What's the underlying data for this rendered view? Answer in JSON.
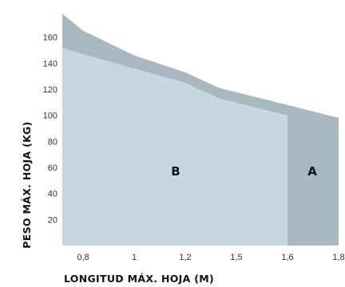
{
  "chart_data": {
    "type": "area",
    "title": "",
    "xlabel": "LONGITUD MÁX. HOJA (M)",
    "ylabel": "PESO MÁX. HOJA (KG)",
    "xlim": [
      0.7,
      1.8
    ],
    "ylim": [
      0,
      180
    ],
    "x_ticks": [
      "0,8",
      "1",
      "1,2",
      "1,5",
      "1,6",
      "1,8"
    ],
    "y_ticks": [
      "20",
      "40",
      "60",
      "80",
      "100",
      "120",
      "140",
      "160"
    ],
    "grid": false,
    "series": [
      {
        "name": "A",
        "color": "#a7b8c1",
        "x": [
          0.7,
          0.8,
          1.0,
          1.2,
          1.4,
          1.6,
          1.8
        ],
        "values": [
          178,
          165,
          146,
          133,
          121,
          108,
          98
        ]
      },
      {
        "name": "B",
        "color": "#c6d7df",
        "x": [
          0.7,
          0.8,
          1.0,
          1.2,
          1.4,
          1.6
        ],
        "values": [
          152,
          147,
          136,
          125,
          113,
          100
        ]
      }
    ]
  }
}
